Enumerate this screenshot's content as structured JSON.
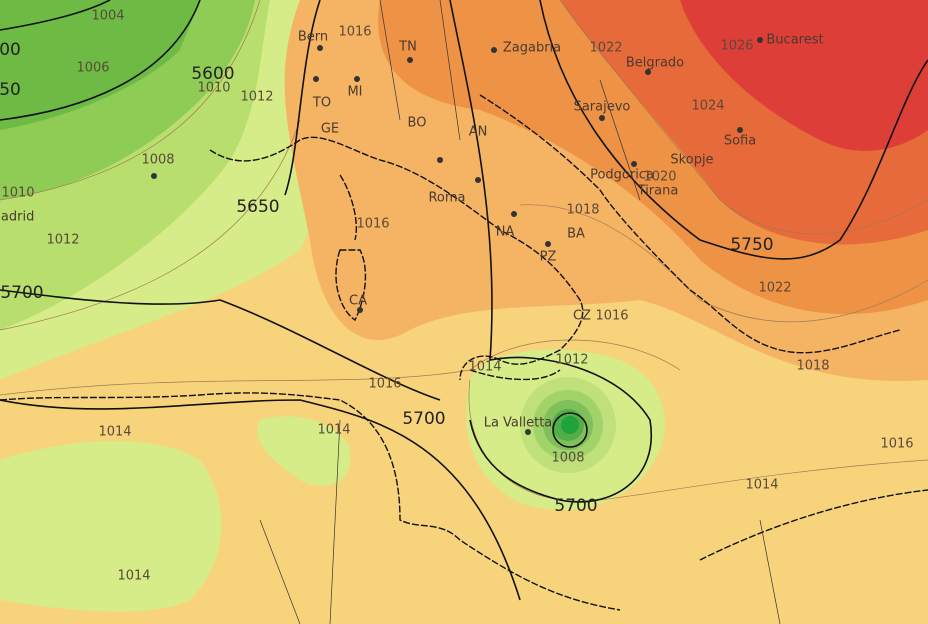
{
  "isobar_labels": [
    1004,
    1006,
    1010,
    1012,
    1008,
    1010,
    1012,
    1016,
    1016,
    1022,
    1026,
    1024,
    1020,
    1018,
    1016,
    1012,
    1014,
    1016,
    1014,
    1014,
    1008,
    1014,
    1014,
    1018,
    1016,
    1022
  ],
  "height_labels": [
    "00",
    "50",
    5600,
    5650,
    5700,
    5700,
    5700,
    5750
  ],
  "cities": [
    "Bern",
    "TN",
    "Zagabria",
    "Belgrado",
    "Bucarest",
    "Sarajevo",
    "Sofia",
    "Skopje",
    "Podgorica",
    "Tirana",
    "MI",
    "TO",
    "GE",
    "BO",
    "AN",
    "Roma",
    "BA",
    "NA",
    "PZ",
    "CZ",
    "CA",
    "La Valletta",
    "Madrid"
  ]
}
